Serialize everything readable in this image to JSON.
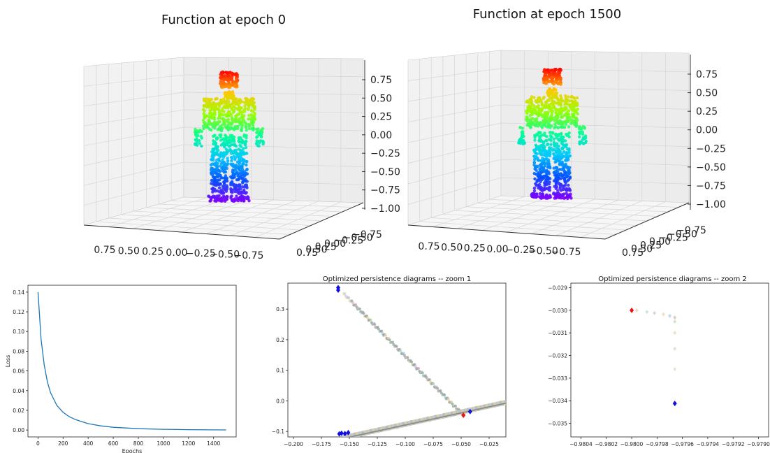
{
  "chart_data": [
    {
      "type": "scatter",
      "title": "Function at epoch 0",
      "zticks": [
        "0.75",
        "0.50",
        "0.25",
        "0.00",
        "−0.25",
        "−0.50",
        "−0.75",
        "−1.00"
      ],
      "xticks": [
        "0.75",
        "0.50",
        "0.25",
        "0.00",
        "−0.25",
        "−0.50",
        "−0.75"
      ],
      "yticks": [
        "0.75",
        "0.50",
        "0.25",
        "0.00",
        "−0.25",
        "−0.50",
        "−0.75"
      ],
      "colormap": "rainbow"
    },
    {
      "type": "scatter",
      "title": "Function at epoch 1500",
      "zticks": [
        "0.75",
        "0.50",
        "0.25",
        "0.00",
        "−0.25",
        "−0.50",
        "−0.75",
        "−1.00"
      ],
      "xticks": [
        "0.75",
        "0.50",
        "0.25",
        "0.00",
        "−0.25",
        "−0.50",
        "−0.75"
      ],
      "yticks": [
        "0.75",
        "0.50",
        "0.25",
        "0.00",
        "−0.25",
        "−0.50",
        "−0.75"
      ],
      "colormap": "rainbow"
    },
    {
      "type": "line",
      "title": "",
      "xlabel": "Epochs",
      "ylabel": "Loss",
      "xlim": [
        -80,
        1580
      ],
      "ylim": [
        -0.007,
        0.147
      ],
      "xticks": [
        0,
        200,
        400,
        600,
        800,
        1000,
        1200,
        1400
      ],
      "yticks": [
        0.0,
        0.02,
        0.04,
        0.06,
        0.08,
        0.1,
        0.12,
        0.14
      ],
      "series": [
        {
          "x": [
            0,
            25,
            50,
            75,
            100,
            150,
            200,
            250,
            300,
            400,
            500,
            600,
            800,
            1000,
            1200,
            1400,
            1500
          ],
          "y": [
            0.14,
            0.092,
            0.066,
            0.049,
            0.038,
            0.025,
            0.018,
            0.0135,
            0.0105,
            0.0065,
            0.0042,
            0.0028,
            0.0014,
            0.0007,
            0.0004,
            0.0002,
            0.0001
          ],
          "color": "#1f77b4"
        }
      ]
    },
    {
      "type": "scatter",
      "title": "Optimized persistence diagrams -- zoom 1",
      "xlim": [
        -0.205,
        -0.01
      ],
      "ylim": [
        -0.118,
        0.385
      ],
      "xticks": [
        "−0.200",
        "−0.175",
        "−0.150",
        "−0.125",
        "−0.100",
        "−0.075",
        "−0.050",
        "−0.025"
      ],
      "yticks": [
        "−0.1",
        "0.0",
        "0.1",
        "0.2",
        "0.3"
      ],
      "xtick_values": [
        -0.2,
        -0.175,
        -0.15,
        -0.125,
        -0.1,
        -0.075,
        -0.05,
        -0.025
      ],
      "ytick_values": [
        -0.1,
        0.0,
        0.1,
        0.2,
        0.3
      ],
      "initial_points": [
        [
          -0.16,
          0.37
        ],
        [
          -0.16,
          0.362
        ],
        [
          -0.159,
          -0.108
        ],
        [
          -0.157,
          -0.106
        ],
        [
          -0.154,
          -0.107
        ],
        [
          -0.151,
          -0.104
        ],
        [
          -0.042,
          -0.035
        ]
      ],
      "final_points": [
        [
          -0.048,
          -0.047
        ]
      ],
      "trajectory_diagonal": [
        [
          -0.155,
          -0.12
        ],
        [
          -0.01,
          -0.005
        ]
      ],
      "trajectory_upper": [
        [
          -0.155,
          0.35
        ],
        [
          -0.048,
          -0.047
        ]
      ]
    },
    {
      "type": "scatter",
      "title": "Optimized persistence diagrams -- zoom 2",
      "xlim": [
        -0.98048,
        -0.97892
      ],
      "ylim": [
        -0.0356,
        -0.0288
      ],
      "xticks": [
        "−0.9804",
        "−0.9802",
        "−0.9800",
        "−0.9798",
        "−0.9796",
        "−0.9794",
        "−0.9792",
        "−0.9790"
      ],
      "yticks": [
        "−0.029",
        "−0.030",
        "−0.031",
        "−0.032",
        "−0.033",
        "−0.034",
        "−0.035"
      ],
      "xtick_values": [
        -0.9804,
        -0.9802,
        -0.98,
        -0.9798,
        -0.9796,
        -0.9794,
        -0.9792,
        -0.979
      ],
      "ytick_values": [
        -0.029,
        -0.03,
        -0.031,
        -0.032,
        -0.033,
        -0.034,
        -0.035
      ],
      "initial_points": [
        [
          -0.97966,
          -0.03412
        ]
      ],
      "final_points": [
        [
          -0.98,
          -0.03
        ]
      ],
      "trajectory": [
        [
          -0.97996,
          -0.03
        ],
        [
          -0.97988,
          -0.03007
        ],
        [
          -0.97982,
          -0.03012
        ],
        [
          -0.97975,
          -0.03018
        ],
        [
          -0.9797,
          -0.03025
        ],
        [
          -0.97966,
          -0.03032
        ],
        [
          -0.97966,
          -0.0305
        ],
        [
          -0.97966,
          -0.031
        ],
        [
          -0.97966,
          -0.0317
        ],
        [
          -0.97966,
          -0.0326
        ]
      ]
    }
  ]
}
